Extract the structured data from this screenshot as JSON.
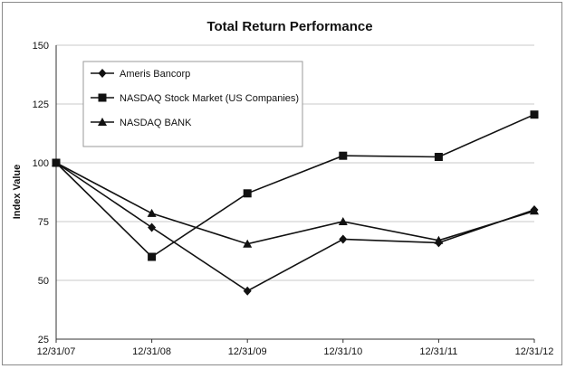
{
  "chart_data": {
    "type": "line",
    "title": "Total Return Performance",
    "xlabel": "",
    "ylabel": "Index Value",
    "ylim": [
      25,
      150
    ],
    "yticks": [
      25,
      50,
      75,
      100,
      125,
      150
    ],
    "categories": [
      "12/31/07",
      "12/31/08",
      "12/31/09",
      "12/31/10",
      "12/31/11",
      "12/31/12"
    ],
    "grid": "horizontal",
    "legend_position": "top-left",
    "series": [
      {
        "name": "Ameris Bancorp",
        "marker": "diamond",
        "values": [
          100,
          72.5,
          45.5,
          67.5,
          66,
          80
        ]
      },
      {
        "name": "NASDAQ Stock Market (US Companies)",
        "marker": "square",
        "values": [
          100,
          60,
          87,
          103,
          102.5,
          120.5
        ]
      },
      {
        "name": "NASDAQ BANK",
        "marker": "triangle",
        "values": [
          100,
          78.5,
          65.5,
          75,
          67,
          79.5
        ]
      }
    ],
    "colors": {
      "line": "#111111",
      "grid": "#c8c8c8",
      "axis": "#333333",
      "legend_border": "#9a9a9a"
    }
  }
}
